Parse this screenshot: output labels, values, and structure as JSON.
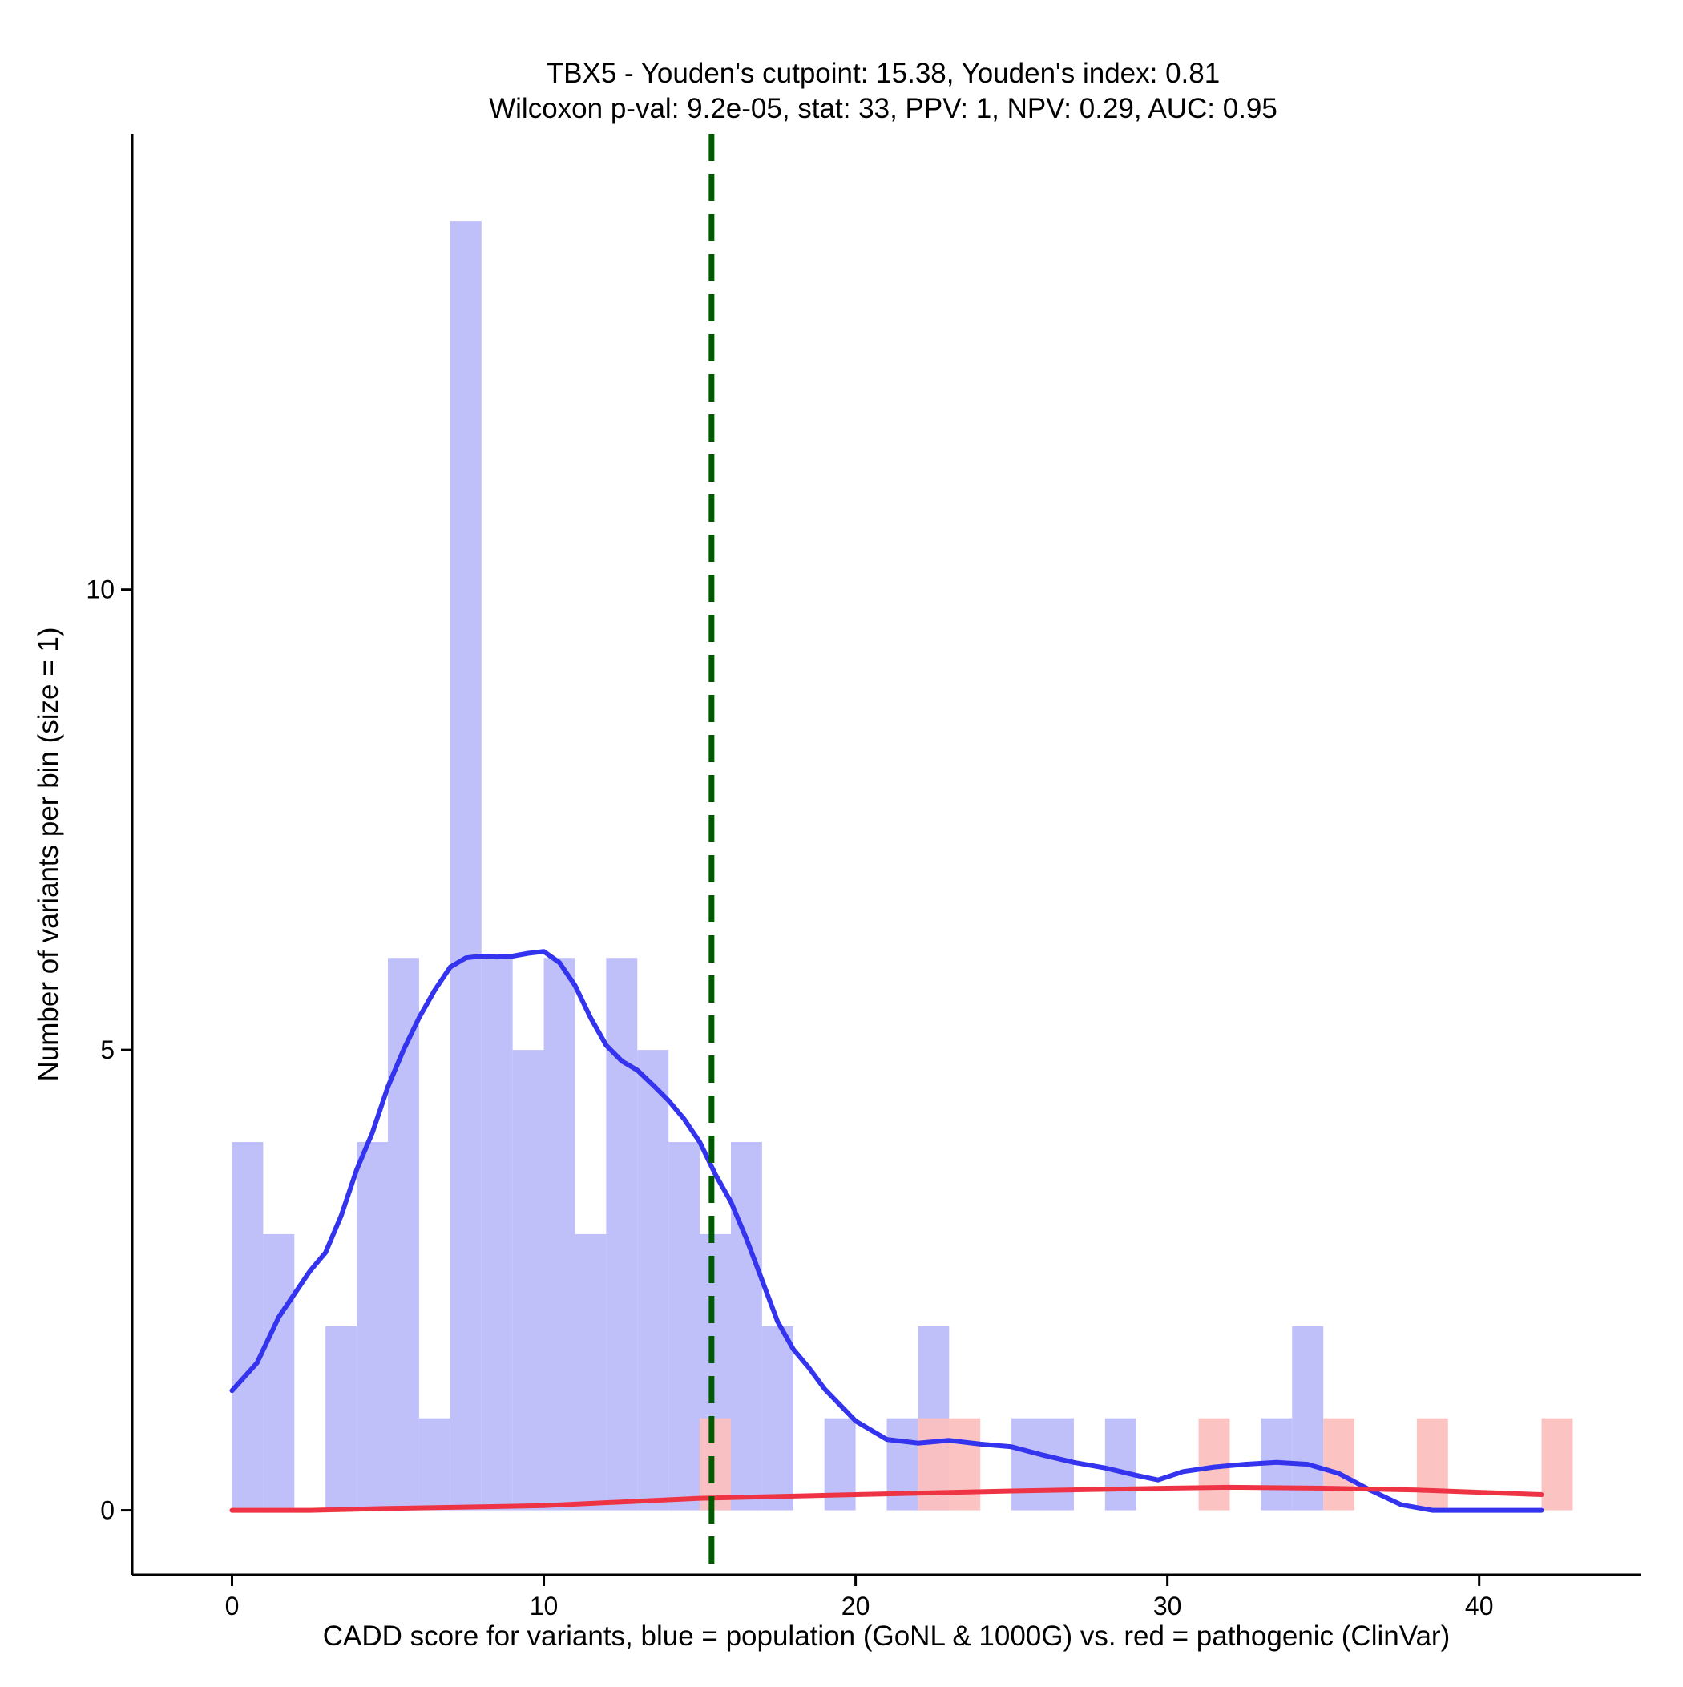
{
  "chart_data": {
    "type": "histogram",
    "title_line1": "TBX5 - Youden's cutpoint: 15.38, Youden's index: 0.81",
    "title_line2": "Wilcoxon p-val: 9.2e-05, stat: 33, PPV: 1, NPV: 0.29, AUC: 0.95",
    "xlabel": "CADD score for variants, blue = population (GoNL & 1000G) vs. red = pathogenic (ClinVar)",
    "ylabel": "Number of variants per bin (size = 1)",
    "xlim": [
      -3.2,
      45.2
    ],
    "ylim": [
      -0.7,
      14.95
    ],
    "x_ticks": [
      0,
      10,
      20,
      30,
      40
    ],
    "y_ticks": [
      0,
      5,
      10
    ],
    "bin_width": 1,
    "colors": {
      "population_bar": "#bfbffa",
      "pathogenic_bar": "#fcc0c0",
      "population_line": "#3434ee",
      "pathogenic_line": "#ee3444",
      "cutpoint_line": "#005a00"
    },
    "cutpoint": 15.38,
    "series": [
      {
        "name": "population (GoNL & 1000G)",
        "bins": [
          {
            "start": 0,
            "count": 4
          },
          {
            "start": 1,
            "count": 3
          },
          {
            "start": 3,
            "count": 2
          },
          {
            "start": 4,
            "count": 4
          },
          {
            "start": 5,
            "count": 6
          },
          {
            "start": 6,
            "count": 1
          },
          {
            "start": 7,
            "count": 14
          },
          {
            "start": 8,
            "count": 6
          },
          {
            "start": 9,
            "count": 5
          },
          {
            "start": 10,
            "count": 6
          },
          {
            "start": 11,
            "count": 3
          },
          {
            "start": 12,
            "count": 6
          },
          {
            "start": 13,
            "count": 5
          },
          {
            "start": 14,
            "count": 4
          },
          {
            "start": 15,
            "count": 3
          },
          {
            "start": 16,
            "count": 4
          },
          {
            "start": 17,
            "count": 2
          },
          {
            "start": 19,
            "count": 1
          },
          {
            "start": 21,
            "count": 1
          },
          {
            "start": 22,
            "count": 2
          },
          {
            "start": 25,
            "count": 1
          },
          {
            "start": 26,
            "count": 1
          },
          {
            "start": 28,
            "count": 1
          },
          {
            "start": 33,
            "count": 1
          },
          {
            "start": 34,
            "count": 2
          }
        ],
        "density": [
          [
            0,
            1.3
          ],
          [
            0.8,
            1.6
          ],
          [
            1.5,
            2.1
          ],
          [
            2.5,
            2.6
          ],
          [
            3,
            2.8
          ],
          [
            3.5,
            3.2
          ],
          [
            4,
            3.7
          ],
          [
            4.5,
            4.1
          ],
          [
            5,
            4.6
          ],
          [
            5.5,
            5.0
          ],
          [
            6,
            5.35
          ],
          [
            6.5,
            5.65
          ],
          [
            7,
            5.9
          ],
          [
            7.5,
            6.0
          ],
          [
            8,
            6.02
          ],
          [
            8.5,
            6.01
          ],
          [
            9,
            6.02
          ],
          [
            9.5,
            6.05
          ],
          [
            10,
            6.07
          ],
          [
            10.5,
            5.95
          ],
          [
            11,
            5.7
          ],
          [
            11.5,
            5.35
          ],
          [
            12,
            5.05
          ],
          [
            12.5,
            4.88
          ],
          [
            13,
            4.78
          ],
          [
            13.5,
            4.62
          ],
          [
            14,
            4.45
          ],
          [
            14.5,
            4.25
          ],
          [
            15,
            4.0
          ],
          [
            15.5,
            3.65
          ],
          [
            16,
            3.35
          ],
          [
            16.5,
            2.95
          ],
          [
            17,
            2.5
          ],
          [
            17.5,
            2.05
          ],
          [
            18,
            1.75
          ],
          [
            18.5,
            1.55
          ],
          [
            19,
            1.32
          ],
          [
            20,
            0.97
          ],
          [
            21,
            0.77
          ],
          [
            22,
            0.73
          ],
          [
            23,
            0.76
          ],
          [
            24,
            0.72
          ],
          [
            25,
            0.69
          ],
          [
            26,
            0.6
          ],
          [
            27,
            0.52
          ],
          [
            28,
            0.46
          ],
          [
            29,
            0.38
          ],
          [
            29.7,
            0.33
          ],
          [
            30.5,
            0.42
          ],
          [
            31.5,
            0.47
          ],
          [
            32.5,
            0.5
          ],
          [
            33.5,
            0.52
          ],
          [
            34.5,
            0.5
          ],
          [
            35.5,
            0.4
          ],
          [
            36.5,
            0.22
          ],
          [
            37.5,
            0.06
          ],
          [
            38.5,
            0.0
          ],
          [
            42,
            0.0
          ]
        ]
      },
      {
        "name": "pathogenic (ClinVar)",
        "bins": [
          {
            "start": 15,
            "count": 1
          },
          {
            "start": 22,
            "count": 1
          },
          {
            "start": 23,
            "count": 1
          },
          {
            "start": 31,
            "count": 1
          },
          {
            "start": 35,
            "count": 1
          },
          {
            "start": 38,
            "count": 1
          },
          {
            "start": 42,
            "count": 1
          }
        ],
        "density": [
          [
            0,
            0.0
          ],
          [
            2.5,
            0.0
          ],
          [
            5,
            0.02
          ],
          [
            10,
            0.05
          ],
          [
            15,
            0.13
          ],
          [
            20,
            0.17
          ],
          [
            25,
            0.21
          ],
          [
            30,
            0.24
          ],
          [
            32,
            0.25
          ],
          [
            35,
            0.24
          ],
          [
            38,
            0.22
          ],
          [
            42,
            0.17
          ]
        ]
      }
    ]
  }
}
